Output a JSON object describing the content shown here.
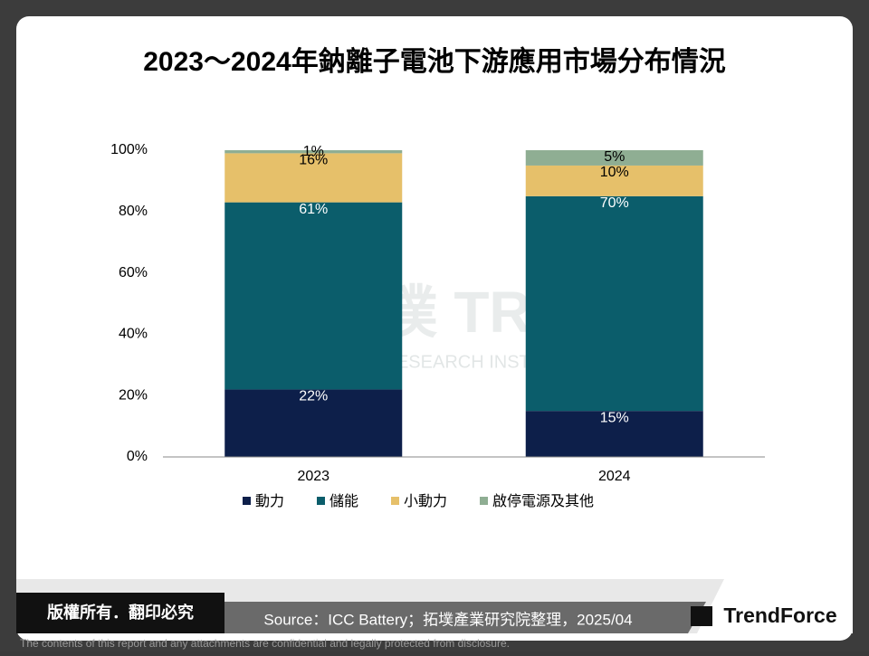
{
  "chart_data": {
    "type": "stacked_bar",
    "title": "2023～2024年鈉離子電池下游應用市場分布情況",
    "categories": [
      "2023",
      "2024"
    ],
    "series": [
      {
        "name": "動力",
        "color": "#0d1f4a",
        "values": [
          22,
          15
        ],
        "value_labels": [
          "22%",
          "15%"
        ]
      },
      {
        "name": "儲能",
        "color": "#0b5d6b",
        "values": [
          61,
          70
        ],
        "value_labels": [
          "61%",
          "70%"
        ]
      },
      {
        "name": "小動力",
        "color": "#e6c06a",
        "values": [
          16,
          10
        ],
        "value_labels": [
          "16%",
          "10%"
        ]
      },
      {
        "name": "啟停電源及其他",
        "color": "#8fae93",
        "values": [
          1,
          5
        ],
        "value_labels": [
          "1%",
          "5%"
        ]
      }
    ],
    "ylim": [
      0,
      100
    ],
    "yticks": [
      {
        "value": 0,
        "label": "0%"
      },
      {
        "value": 20,
        "label": "20%"
      },
      {
        "value": 40,
        "label": "40%"
      },
      {
        "value": 60,
        "label": "60%"
      },
      {
        "value": 80,
        "label": "80%"
      },
      {
        "value": 100,
        "label": "100%"
      }
    ],
    "legend": "bottom"
  },
  "watermark": {
    "logo": "拓墣 TRi",
    "name": "TOPOLOGY RESEARCH INSTITUTE"
  },
  "footer": {
    "copyright": "版權所有．翻印必究",
    "source": "Source：ICC Battery；拓墣產業研究院整理，2025/04",
    "brand": "TrendForce",
    "disclaimer": "The contents of this report and any attachments are confidential and legally protected from disclosure."
  }
}
